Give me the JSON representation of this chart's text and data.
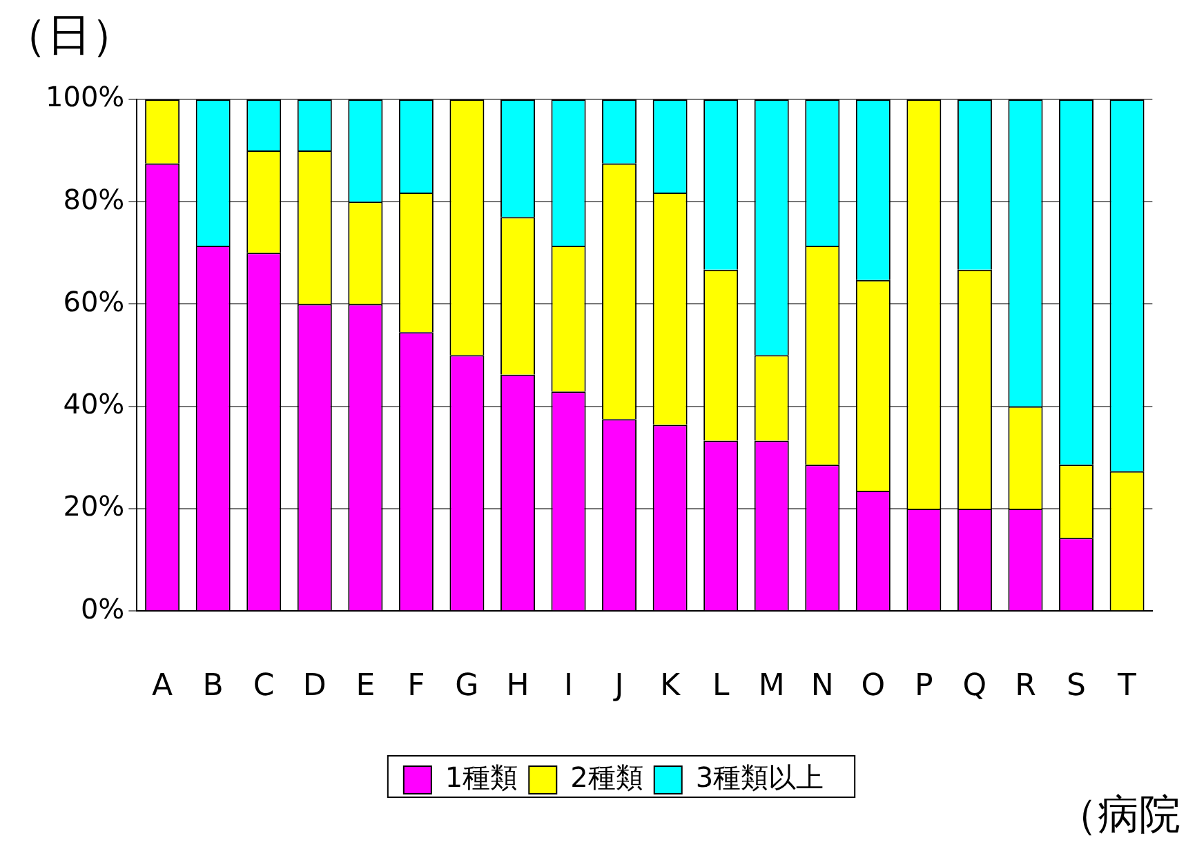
{
  "chart_data": {
    "type": "bar",
    "stacked": true,
    "ylabel": "（日）",
    "xlabel": "（病院",
    "categories": [
      "A",
      "B",
      "C",
      "D",
      "E",
      "F",
      "G",
      "H",
      "I",
      "J",
      "K",
      "L",
      "M",
      "N",
      "O",
      "P",
      "Q",
      "R",
      "S",
      "T"
    ],
    "series": [
      {
        "name": "1種類",
        "color": "#ff00ff",
        "values": [
          87.5,
          71.4,
          70,
          60,
          60,
          54.5,
          50,
          46.2,
          42.9,
          37.5,
          36.4,
          33.3,
          33.3,
          28.6,
          23.5,
          20,
          20,
          20,
          14.3,
          0
        ]
      },
      {
        "name": "2種類",
        "color": "#ffff00",
        "values": [
          12.5,
          0,
          20,
          30,
          20,
          27.3,
          50,
          30.8,
          28.5,
          50,
          45.4,
          33.4,
          16.7,
          42.8,
          41.2,
          80,
          46.7,
          20,
          14.3,
          27.3
        ]
      },
      {
        "name": "3種類以上",
        "color": "#00ffff",
        "values": [
          0,
          28.6,
          10,
          10,
          20,
          18.2,
          0,
          23,
          28.6,
          12.5,
          18.2,
          33.3,
          50,
          28.6,
          35.3,
          0,
          33.3,
          60,
          71.4,
          72.7
        ]
      }
    ],
    "ylim": [
      0,
      100
    ],
    "yticks": [
      {
        "value": 0,
        "label": "0%"
      },
      {
        "value": 20,
        "label": "20%"
      },
      {
        "value": 40,
        "label": "40%"
      },
      {
        "value": 60,
        "label": "60%"
      },
      {
        "value": 80,
        "label": "80%"
      },
      {
        "value": 100,
        "label": "100%"
      }
    ],
    "grid": "y",
    "legend": "bottom"
  }
}
